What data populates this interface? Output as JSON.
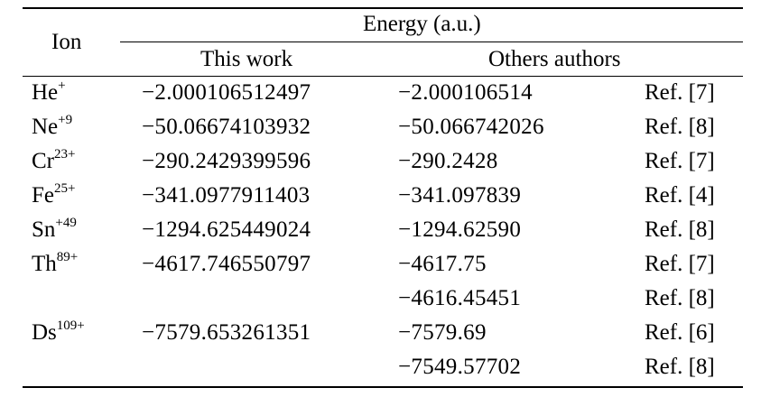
{
  "header": {
    "ion": "Ion",
    "energy": "Energy (a.u.)",
    "this_work": "This work",
    "others": "Others authors"
  },
  "rows": [
    {
      "ion": "He",
      "charge": "+",
      "this_work": "−2.000106512497",
      "others": "−2.000106514",
      "ref": "Ref. [7]"
    },
    {
      "ion": "Ne",
      "charge": "+9",
      "this_work": "−50.06674103932",
      "others": "−50.066742026",
      "ref": "Ref. [8]"
    },
    {
      "ion": "Cr",
      "charge": "23+",
      "this_work": "−290.2429399596",
      "others": "−290.2428",
      "ref": "Ref. [7]"
    },
    {
      "ion": "Fe",
      "charge": "25+",
      "this_work": "−341.0977911403",
      "others": "−341.097839",
      "ref": "Ref. [4]"
    },
    {
      "ion": "Sn",
      "charge": "+49",
      "this_work": "−1294.625449024",
      "others": "−1294.62590",
      "ref": "Ref. [8]"
    },
    {
      "ion": "Th",
      "charge": "89+",
      "this_work": "−4617.746550797",
      "others": "−4617.75",
      "ref": "Ref. [7]"
    },
    {
      "ion": "",
      "charge": "",
      "this_work": "",
      "others": "−4616.45451",
      "ref": "Ref. [8]"
    },
    {
      "ion": "Ds",
      "charge": "109+",
      "this_work": "−7579.653261351",
      "others": "−7579.69",
      "ref": "Ref. [6]"
    },
    {
      "ion": "",
      "charge": "",
      "this_work": "",
      "others": "−7549.57702",
      "ref": "Ref. [8]"
    }
  ]
}
